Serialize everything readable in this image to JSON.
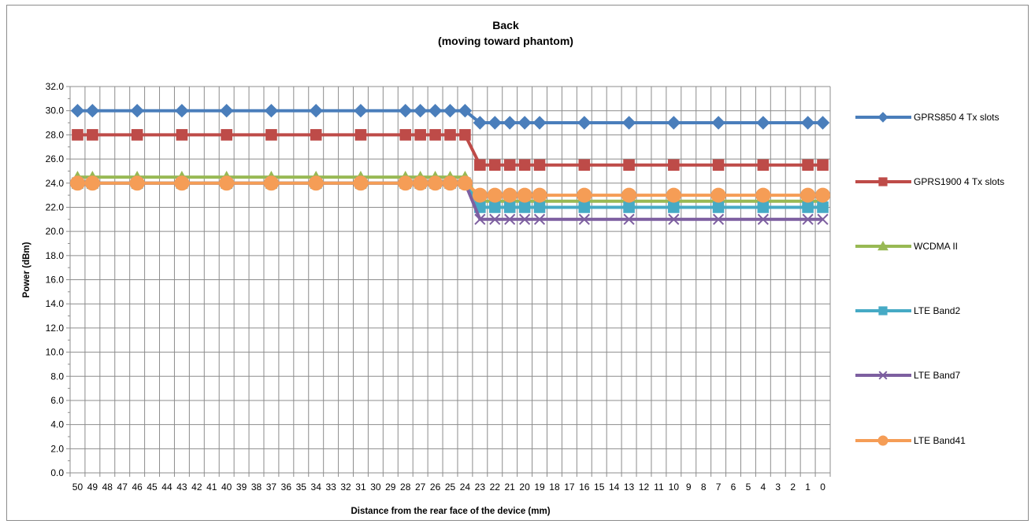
{
  "chart_data": {
    "type": "line",
    "title_line1": "Back",
    "title_line2": "(moving toward phantom)",
    "xlabel": "Distance from the rear face of the device (mm)",
    "ylabel": "Power (dBm)",
    "ylim": [
      0,
      32
    ],
    "ystep": 2,
    "grid": true,
    "legend_position": "right",
    "x": [
      50,
      49,
      48,
      47,
      46,
      45,
      44,
      43,
      42,
      41,
      40,
      39,
      38,
      37,
      36,
      35,
      34,
      33,
      32,
      31,
      30,
      29,
      28,
      27,
      26,
      25,
      24,
      23,
      22,
      21,
      20,
      19,
      18,
      17,
      16,
      15,
      14,
      13,
      12,
      11,
      10,
      9,
      8,
      7,
      6,
      5,
      4,
      3,
      2,
      1,
      0
    ],
    "marker_x": [
      50,
      49,
      46,
      43,
      40,
      37,
      34,
      31,
      28,
      27,
      26,
      25,
      24,
      23,
      22,
      21,
      20,
      19,
      16,
      13,
      10,
      7,
      4,
      1,
      0
    ],
    "series": [
      {
        "name": "GPRS850 4 Tx slots",
        "color": "#4a7ebb",
        "marker": "diamond",
        "before": 30.0,
        "after": 29.0
      },
      {
        "name": "GPRS1900 4 Tx slots",
        "color": "#be4b48",
        "marker": "square",
        "before": 28.0,
        "after": 25.5
      },
      {
        "name": "WCDMA II",
        "color": "#98b954",
        "marker": "triangle",
        "before": 24.5,
        "after": 22.5
      },
      {
        "name": "LTE Band2",
        "color": "#46aac5",
        "marker": "square",
        "before": 24.0,
        "after": 22.0
      },
      {
        "name": "LTE Band7",
        "color": "#7d5fa0",
        "marker": "x",
        "before": 24.0,
        "after": 21.0
      },
      {
        "name": "LTE Band41",
        "color": "#f59d56",
        "marker": "circle",
        "before": 24.0,
        "after": 23.0
      }
    ],
    "step_between": [
      24,
      23
    ]
  }
}
